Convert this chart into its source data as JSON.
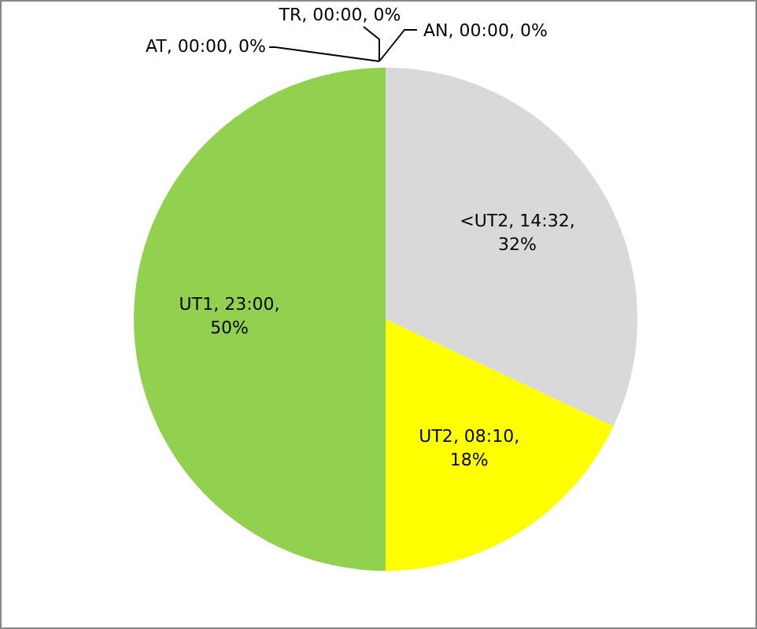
{
  "chart_data": {
    "type": "pie",
    "categories": [
      "AN",
      "<UT2",
      "UT2",
      "UT1",
      "AT",
      "TR"
    ],
    "values": [
      0,
      32,
      18,
      50,
      0,
      0
    ],
    "colors": [
      "#4472c4",
      "#d9d9d9",
      "#ffff00",
      "#92d050",
      "#ed7d31",
      "#a5a5a5"
    ],
    "value_labels": [
      ", 00:00, 0%",
      ", 14:32, 32%",
      ", 08:10, 18%",
      ", 23:00, 50%",
      ", 00:00, 0%",
      ", 00:00, 0%"
    ]
  }
}
